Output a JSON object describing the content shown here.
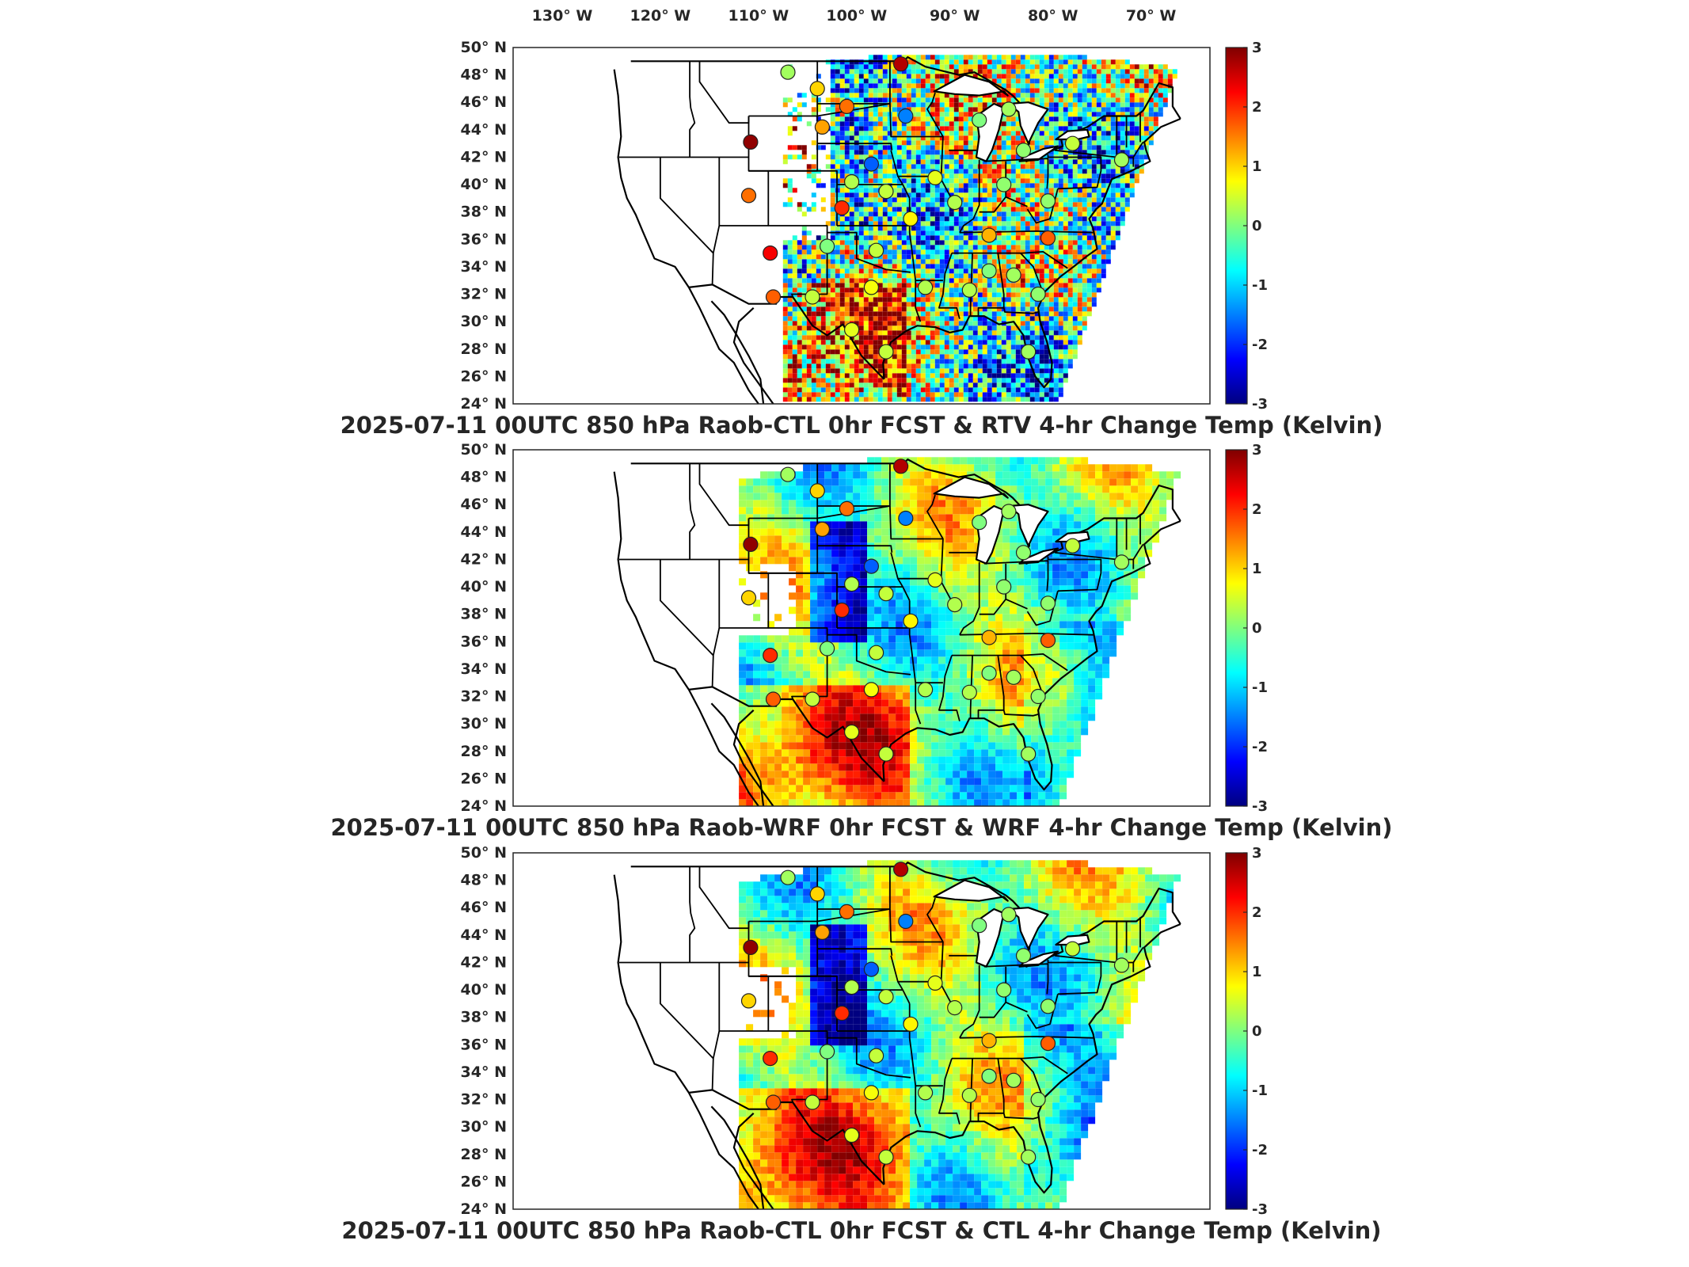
{
  "figure": {
    "lon_axis_labels": [
      "130° W",
      "120° W",
      "110° W",
      "100° W",
      "90° W",
      "80° W",
      "70° W"
    ],
    "lat_axis_labels": [
      "50° N",
      "48° N",
      "46° N",
      "44° N",
      "42° N",
      "40° N",
      "38° N",
      "36° N",
      "34° N",
      "32° N",
      "30° N",
      "28° N",
      "26° N",
      "24° N"
    ],
    "colorbar_ticks": [
      "3",
      "2",
      "1",
      "0",
      "-1",
      "-2",
      "-3"
    ],
    "colorbar_colors": [
      "#00007f",
      "#0000ff",
      "#007fff",
      "#00ffff",
      "#7fff7f",
      "#ffff00",
      "#ff7f00",
      "#ff0000",
      "#7f0000"
    ]
  },
  "chart_data": [
    {
      "type": "heatmap",
      "title": "2025-07-11 00UTC 850 hPa Raob-CTL 0hr FCST & RTV 4-hr Change Temp (Kelvin)",
      "field": "RTV 4-hr Change Temp",
      "units": "Kelvin",
      "xlim": [
        -135,
        -64
      ],
      "ylim": [
        24,
        50
      ],
      "clim": [
        -3,
        3
      ],
      "colormap": "jet",
      "grid": false,
      "legend": "colorbar right",
      "stations": [
        {
          "lon": -107,
          "lat": 48.2,
          "value": 0.2
        },
        {
          "lon": -104,
          "lat": 47.0,
          "value": 1.0
        },
        {
          "lon": -101,
          "lat": 45.7,
          "value": 1.6
        },
        {
          "lon": -95.5,
          "lat": 48.8,
          "value": 2.7
        },
        {
          "lon": -95.0,
          "lat": 45.0,
          "value": -1.5
        },
        {
          "lon": -103.5,
          "lat": 44.2,
          "value": 1.3
        },
        {
          "lon": -110.8,
          "lat": 43.1,
          "value": 2.9
        },
        {
          "lon": -98.5,
          "lat": 41.5,
          "value": -1.7
        },
        {
          "lon": -100.5,
          "lat": 40.2,
          "value": 0.3
        },
        {
          "lon": -111.0,
          "lat": 39.2,
          "value": 1.6
        },
        {
          "lon": -101.5,
          "lat": 38.3,
          "value": 2.0
        },
        {
          "lon": -97.0,
          "lat": 39.5,
          "value": 0.4
        },
        {
          "lon": -92.0,
          "lat": 40.5,
          "value": 0.6
        },
        {
          "lon": -94.5,
          "lat": 37.5,
          "value": 0.8
        },
        {
          "lon": -90.0,
          "lat": 38.7,
          "value": 0.3
        },
        {
          "lon": -85.0,
          "lat": 40.0,
          "value": 0.1
        },
        {
          "lon": -83.0,
          "lat": 42.5,
          "value": 0.1
        },
        {
          "lon": -87.5,
          "lat": 44.7,
          "value": 0.0
        },
        {
          "lon": -84.5,
          "lat": 45.5,
          "value": 0.2
        },
        {
          "lon": -78.0,
          "lat": 43.0,
          "value": 0.4
        },
        {
          "lon": -73.0,
          "lat": 41.8,
          "value": 0.2
        },
        {
          "lon": -80.5,
          "lat": 38.8,
          "value": 0.1
        },
        {
          "lon": -86.5,
          "lat": 36.3,
          "value": 1.2
        },
        {
          "lon": -80.5,
          "lat": 36.1,
          "value": 1.7
        },
        {
          "lon": -103.0,
          "lat": 35.5,
          "value": 0.0
        },
        {
          "lon": -98.0,
          "lat": 35.2,
          "value": 0.4
        },
        {
          "lon": -108.8,
          "lat": 35.0,
          "value": 2.3
        },
        {
          "lon": -98.5,
          "lat": 32.5,
          "value": 0.7
        },
        {
          "lon": -93.0,
          "lat": 32.5,
          "value": 0.3
        },
        {
          "lon": -88.5,
          "lat": 32.3,
          "value": 0.3
        },
        {
          "lon": -86.5,
          "lat": 33.7,
          "value": 0.0
        },
        {
          "lon": -84.0,
          "lat": 33.4,
          "value": 0.2
        },
        {
          "lon": -81.5,
          "lat": 32.0,
          "value": 0.1
        },
        {
          "lon": -104.5,
          "lat": 31.8,
          "value": 0.4
        },
        {
          "lon": -108.5,
          "lat": 31.8,
          "value": 1.7
        },
        {
          "lon": -100.5,
          "lat": 29.4,
          "value": 0.6
        },
        {
          "lon": -97.0,
          "lat": 27.8,
          "value": 0.4
        },
        {
          "lon": -82.5,
          "lat": 27.8,
          "value": 0.2
        }
      ]
    },
    {
      "type": "heatmap",
      "title": "2025-07-11 00UTC 850 hPa Raob-WRF 0hr FCST & WRF 4-hr Change Temp (Kelvin)",
      "field": "WRF 4-hr Change Temp",
      "units": "Kelvin",
      "xlim": [
        -135,
        -64
      ],
      "ylim": [
        24,
        50
      ],
      "clim": [
        -3,
        3
      ],
      "colormap": "jet",
      "grid": false,
      "legend": "colorbar right",
      "stations": [
        {
          "lon": -107,
          "lat": 48.2,
          "value": 0.2
        },
        {
          "lon": -104,
          "lat": 47.0,
          "value": 1.0
        },
        {
          "lon": -101,
          "lat": 45.7,
          "value": 1.6
        },
        {
          "lon": -95.5,
          "lat": 48.8,
          "value": 2.7
        },
        {
          "lon": -95.0,
          "lat": 45.0,
          "value": -1.5
        },
        {
          "lon": -103.5,
          "lat": 44.2,
          "value": 1.3
        },
        {
          "lon": -110.8,
          "lat": 43.1,
          "value": 2.9
        },
        {
          "lon": -98.5,
          "lat": 41.5,
          "value": -1.7
        },
        {
          "lon": -100.5,
          "lat": 40.2,
          "value": 0.3
        },
        {
          "lon": -111.0,
          "lat": 39.2,
          "value": 1.0
        },
        {
          "lon": -101.5,
          "lat": 38.3,
          "value": 2.0
        },
        {
          "lon": -97.0,
          "lat": 39.5,
          "value": 0.4
        },
        {
          "lon": -92.0,
          "lat": 40.5,
          "value": 0.6
        },
        {
          "lon": -94.5,
          "lat": 37.5,
          "value": 0.8
        },
        {
          "lon": -90.0,
          "lat": 38.7,
          "value": 0.3
        },
        {
          "lon": -85.0,
          "lat": 40.0,
          "value": 0.1
        },
        {
          "lon": -83.0,
          "lat": 42.5,
          "value": 0.1
        },
        {
          "lon": -87.5,
          "lat": 44.7,
          "value": 0.0
        },
        {
          "lon": -84.5,
          "lat": 45.5,
          "value": 0.2
        },
        {
          "lon": -78.0,
          "lat": 43.0,
          "value": 0.4
        },
        {
          "lon": -73.0,
          "lat": 41.8,
          "value": 0.2
        },
        {
          "lon": -80.5,
          "lat": 38.8,
          "value": 0.1
        },
        {
          "lon": -86.5,
          "lat": 36.3,
          "value": 1.2
        },
        {
          "lon": -80.5,
          "lat": 36.1,
          "value": 1.7
        },
        {
          "lon": -103.0,
          "lat": 35.5,
          "value": 0.0
        },
        {
          "lon": -98.0,
          "lat": 35.2,
          "value": 0.4
        },
        {
          "lon": -108.8,
          "lat": 35.0,
          "value": 2.0
        },
        {
          "lon": -98.5,
          "lat": 32.5,
          "value": 0.7
        },
        {
          "lon": -93.0,
          "lat": 32.5,
          "value": 0.3
        },
        {
          "lon": -88.5,
          "lat": 32.3,
          "value": 0.3
        },
        {
          "lon": -86.5,
          "lat": 33.7,
          "value": 0.0
        },
        {
          "lon": -84.0,
          "lat": 33.4,
          "value": 0.2
        },
        {
          "lon": -81.5,
          "lat": 32.0,
          "value": 0.1
        },
        {
          "lon": -104.5,
          "lat": 31.8,
          "value": 0.4
        },
        {
          "lon": -108.5,
          "lat": 31.8,
          "value": 1.7
        },
        {
          "lon": -100.5,
          "lat": 29.4,
          "value": 0.6
        },
        {
          "lon": -97.0,
          "lat": 27.8,
          "value": 0.4
        },
        {
          "lon": -82.5,
          "lat": 27.8,
          "value": 0.2
        }
      ]
    },
    {
      "type": "heatmap",
      "title": "2025-07-11 00UTC 850 hPa Raob-CTL 0hr FCST & CTL 4-hr Change Temp (Kelvin)",
      "field": "CTL 4-hr Change Temp",
      "units": "Kelvin",
      "xlim": [
        -135,
        -64
      ],
      "ylim": [
        24,
        50
      ],
      "clim": [
        -3,
        3
      ],
      "colormap": "jet",
      "grid": false,
      "legend": "colorbar right",
      "stations": [
        {
          "lon": -107,
          "lat": 48.2,
          "value": 0.2
        },
        {
          "lon": -104,
          "lat": 47.0,
          "value": 1.0
        },
        {
          "lon": -101,
          "lat": 45.7,
          "value": 1.6
        },
        {
          "lon": -95.5,
          "lat": 48.8,
          "value": 2.7
        },
        {
          "lon": -95.0,
          "lat": 45.0,
          "value": -1.5
        },
        {
          "lon": -103.5,
          "lat": 44.2,
          "value": 1.3
        },
        {
          "lon": -110.8,
          "lat": 43.1,
          "value": 2.9
        },
        {
          "lon": -98.5,
          "lat": 41.5,
          "value": -1.7
        },
        {
          "lon": -100.5,
          "lat": 40.2,
          "value": 0.3
        },
        {
          "lon": -111.0,
          "lat": 39.2,
          "value": 1.0
        },
        {
          "lon": -101.5,
          "lat": 38.3,
          "value": 2.0
        },
        {
          "lon": -97.0,
          "lat": 39.5,
          "value": 0.4
        },
        {
          "lon": -92.0,
          "lat": 40.5,
          "value": 0.6
        },
        {
          "lon": -94.5,
          "lat": 37.5,
          "value": 0.8
        },
        {
          "lon": -90.0,
          "lat": 38.7,
          "value": 0.3
        },
        {
          "lon": -85.0,
          "lat": 40.0,
          "value": 0.1
        },
        {
          "lon": -83.0,
          "lat": 42.5,
          "value": 0.1
        },
        {
          "lon": -87.5,
          "lat": 44.7,
          "value": 0.0
        },
        {
          "lon": -84.5,
          "lat": 45.5,
          "value": 0.2
        },
        {
          "lon": -78.0,
          "lat": 43.0,
          "value": 0.4
        },
        {
          "lon": -73.0,
          "lat": 41.8,
          "value": 0.2
        },
        {
          "lon": -80.5,
          "lat": 38.8,
          "value": 0.1
        },
        {
          "lon": -86.5,
          "lat": 36.3,
          "value": 1.2
        },
        {
          "lon": -80.5,
          "lat": 36.1,
          "value": 1.7
        },
        {
          "lon": -103.0,
          "lat": 35.5,
          "value": 0.0
        },
        {
          "lon": -98.0,
          "lat": 35.2,
          "value": 0.4
        },
        {
          "lon": -108.8,
          "lat": 35.0,
          "value": 2.0
        },
        {
          "lon": -98.5,
          "lat": 32.5,
          "value": 0.7
        },
        {
          "lon": -93.0,
          "lat": 32.5,
          "value": 0.3
        },
        {
          "lon": -88.5,
          "lat": 32.3,
          "value": 0.3
        },
        {
          "lon": -86.5,
          "lat": 33.7,
          "value": 0.0
        },
        {
          "lon": -84.0,
          "lat": 33.4,
          "value": 0.2
        },
        {
          "lon": -81.5,
          "lat": 32.0,
          "value": 0.1
        },
        {
          "lon": -104.5,
          "lat": 31.8,
          "value": 0.4
        },
        {
          "lon": -108.5,
          "lat": 31.8,
          "value": 1.7
        },
        {
          "lon": -100.5,
          "lat": 29.4,
          "value": 0.6
        },
        {
          "lon": -97.0,
          "lat": 27.8,
          "value": 0.4
        },
        {
          "lon": -82.5,
          "lat": 27.8,
          "value": 0.2
        }
      ]
    }
  ]
}
